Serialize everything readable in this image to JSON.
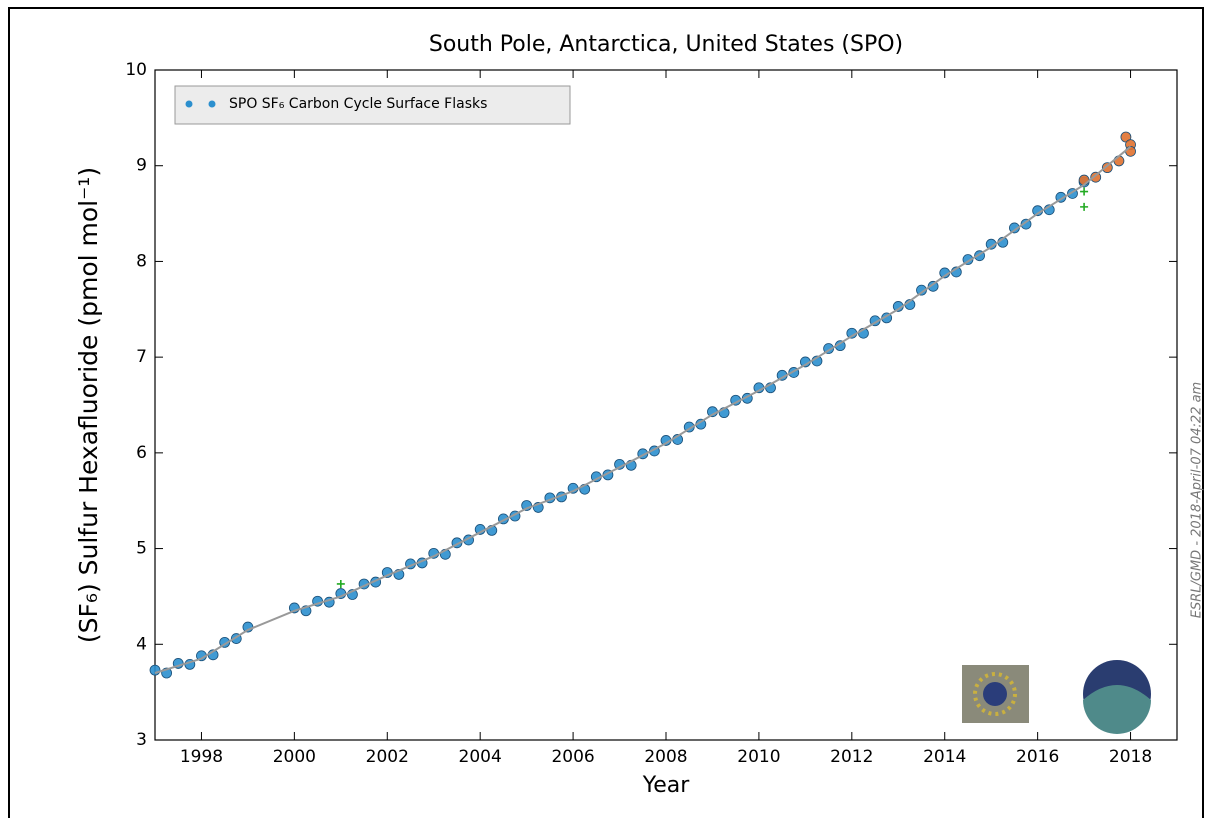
{
  "chart_data": {
    "type": "scatter",
    "title": "South Pole, Antarctica, United States (SPO)",
    "xlabel": "Year",
    "ylabel": "(SF₆) Sulfur Hexafluoride (pmol mol⁻¹)",
    "side_note": "ESRL/GMD - 2018-April-07 04:22 am",
    "xlim": [
      1997,
      2019
    ],
    "ylim": [
      3,
      10
    ],
    "xticks": [
      1998,
      2000,
      2002,
      2004,
      2006,
      2008,
      2010,
      2012,
      2014,
      2016,
      2018
    ],
    "yticks": [
      3,
      4,
      5,
      6,
      7,
      8,
      9,
      10
    ],
    "legend": "upper left",
    "series": [
      {
        "name": "SPO SF₆ Carbon Cycle Surface Flasks",
        "color": "#2b8fce",
        "x": [
          1997.0,
          1997.25,
          1997.5,
          1997.75,
          1998.0,
          1998.25,
          1998.5,
          1998.75,
          1999.0,
          2000.0,
          2000.25,
          2000.5,
          2000.75,
          2001.0,
          2001.25,
          2001.5,
          2001.75,
          2002.0,
          2002.25,
          2002.5,
          2002.75,
          2003.0,
          2003.25,
          2003.5,
          2003.75,
          2004.0,
          2004.25,
          2004.5,
          2004.75,
          2005.0,
          2005.25,
          2005.5,
          2005.75,
          2006.0,
          2006.25,
          2006.5,
          2006.75,
          2007.0,
          2007.25,
          2007.5,
          2007.75,
          2008.0,
          2008.25,
          2008.5,
          2008.75,
          2009.0,
          2009.25,
          2009.5,
          2009.75,
          2010.0,
          2010.25,
          2010.5,
          2010.75,
          2011.0,
          2011.25,
          2011.5,
          2011.75,
          2012.0,
          2012.25,
          2012.5,
          2012.75,
          2013.0,
          2013.25,
          2013.5,
          2013.75,
          2014.0,
          2014.25,
          2014.5,
          2014.75,
          2015.0,
          2015.25,
          2015.5,
          2015.75,
          2016.0,
          2016.25,
          2016.5,
          2016.75,
          2017.0
        ],
        "values": [
          3.73,
          3.7,
          3.8,
          3.79,
          3.88,
          3.89,
          4.02,
          4.06,
          4.18,
          4.38,
          4.35,
          4.45,
          4.44,
          4.53,
          4.52,
          4.63,
          4.65,
          4.75,
          4.73,
          4.84,
          4.85,
          4.95,
          4.94,
          5.06,
          5.09,
          5.2,
          5.19,
          5.31,
          5.34,
          5.45,
          5.43,
          5.53,
          5.54,
          5.63,
          5.62,
          5.75,
          5.77,
          5.88,
          5.87,
          5.99,
          6.02,
          6.13,
          6.14,
          6.27,
          6.3,
          6.43,
          6.42,
          6.55,
          6.57,
          6.68,
          6.68,
          6.81,
          6.84,
          6.95,
          6.96,
          7.09,
          7.12,
          7.25,
          7.25,
          7.38,
          7.41,
          7.53,
          7.55,
          7.7,
          7.74,
          7.88,
          7.89,
          8.02,
          8.06,
          8.18,
          8.2,
          8.35,
          8.39,
          8.53,
          8.54,
          8.67,
          8.71,
          8.83
        ]
      }
    ],
    "extra_points": [
      {
        "color": "#e0712f",
        "marker": "circle",
        "x": [
          2017.0,
          2017.25,
          2017.5,
          2017.75,
          2017.9,
          2018.0,
          2018.0
        ],
        "values": [
          8.85,
          8.88,
          8.98,
          9.05,
          9.3,
          9.22,
          9.15
        ]
      },
      {
        "color": "#22aa22",
        "marker": "plus",
        "x": [
          2001.0,
          2017.0,
          2017.0
        ],
        "values": [
          4.63,
          8.57,
          8.73
        ]
      }
    ],
    "trend": {
      "color": "#999999",
      "x": [
        1997,
        1998,
        1999,
        2000,
        2001,
        2002,
        2003,
        2004,
        2005,
        2006,
        2007,
        2008,
        2009,
        2010,
        2011,
        2012,
        2013,
        2014,
        2015,
        2016,
        2017,
        2018
      ],
      "values": [
        3.7,
        3.85,
        4.15,
        4.35,
        4.5,
        4.72,
        4.92,
        5.17,
        5.42,
        5.6,
        5.85,
        6.1,
        6.4,
        6.65,
        6.92,
        7.22,
        7.5,
        7.85,
        8.15,
        8.5,
        8.8,
        9.2
      ]
    }
  }
}
